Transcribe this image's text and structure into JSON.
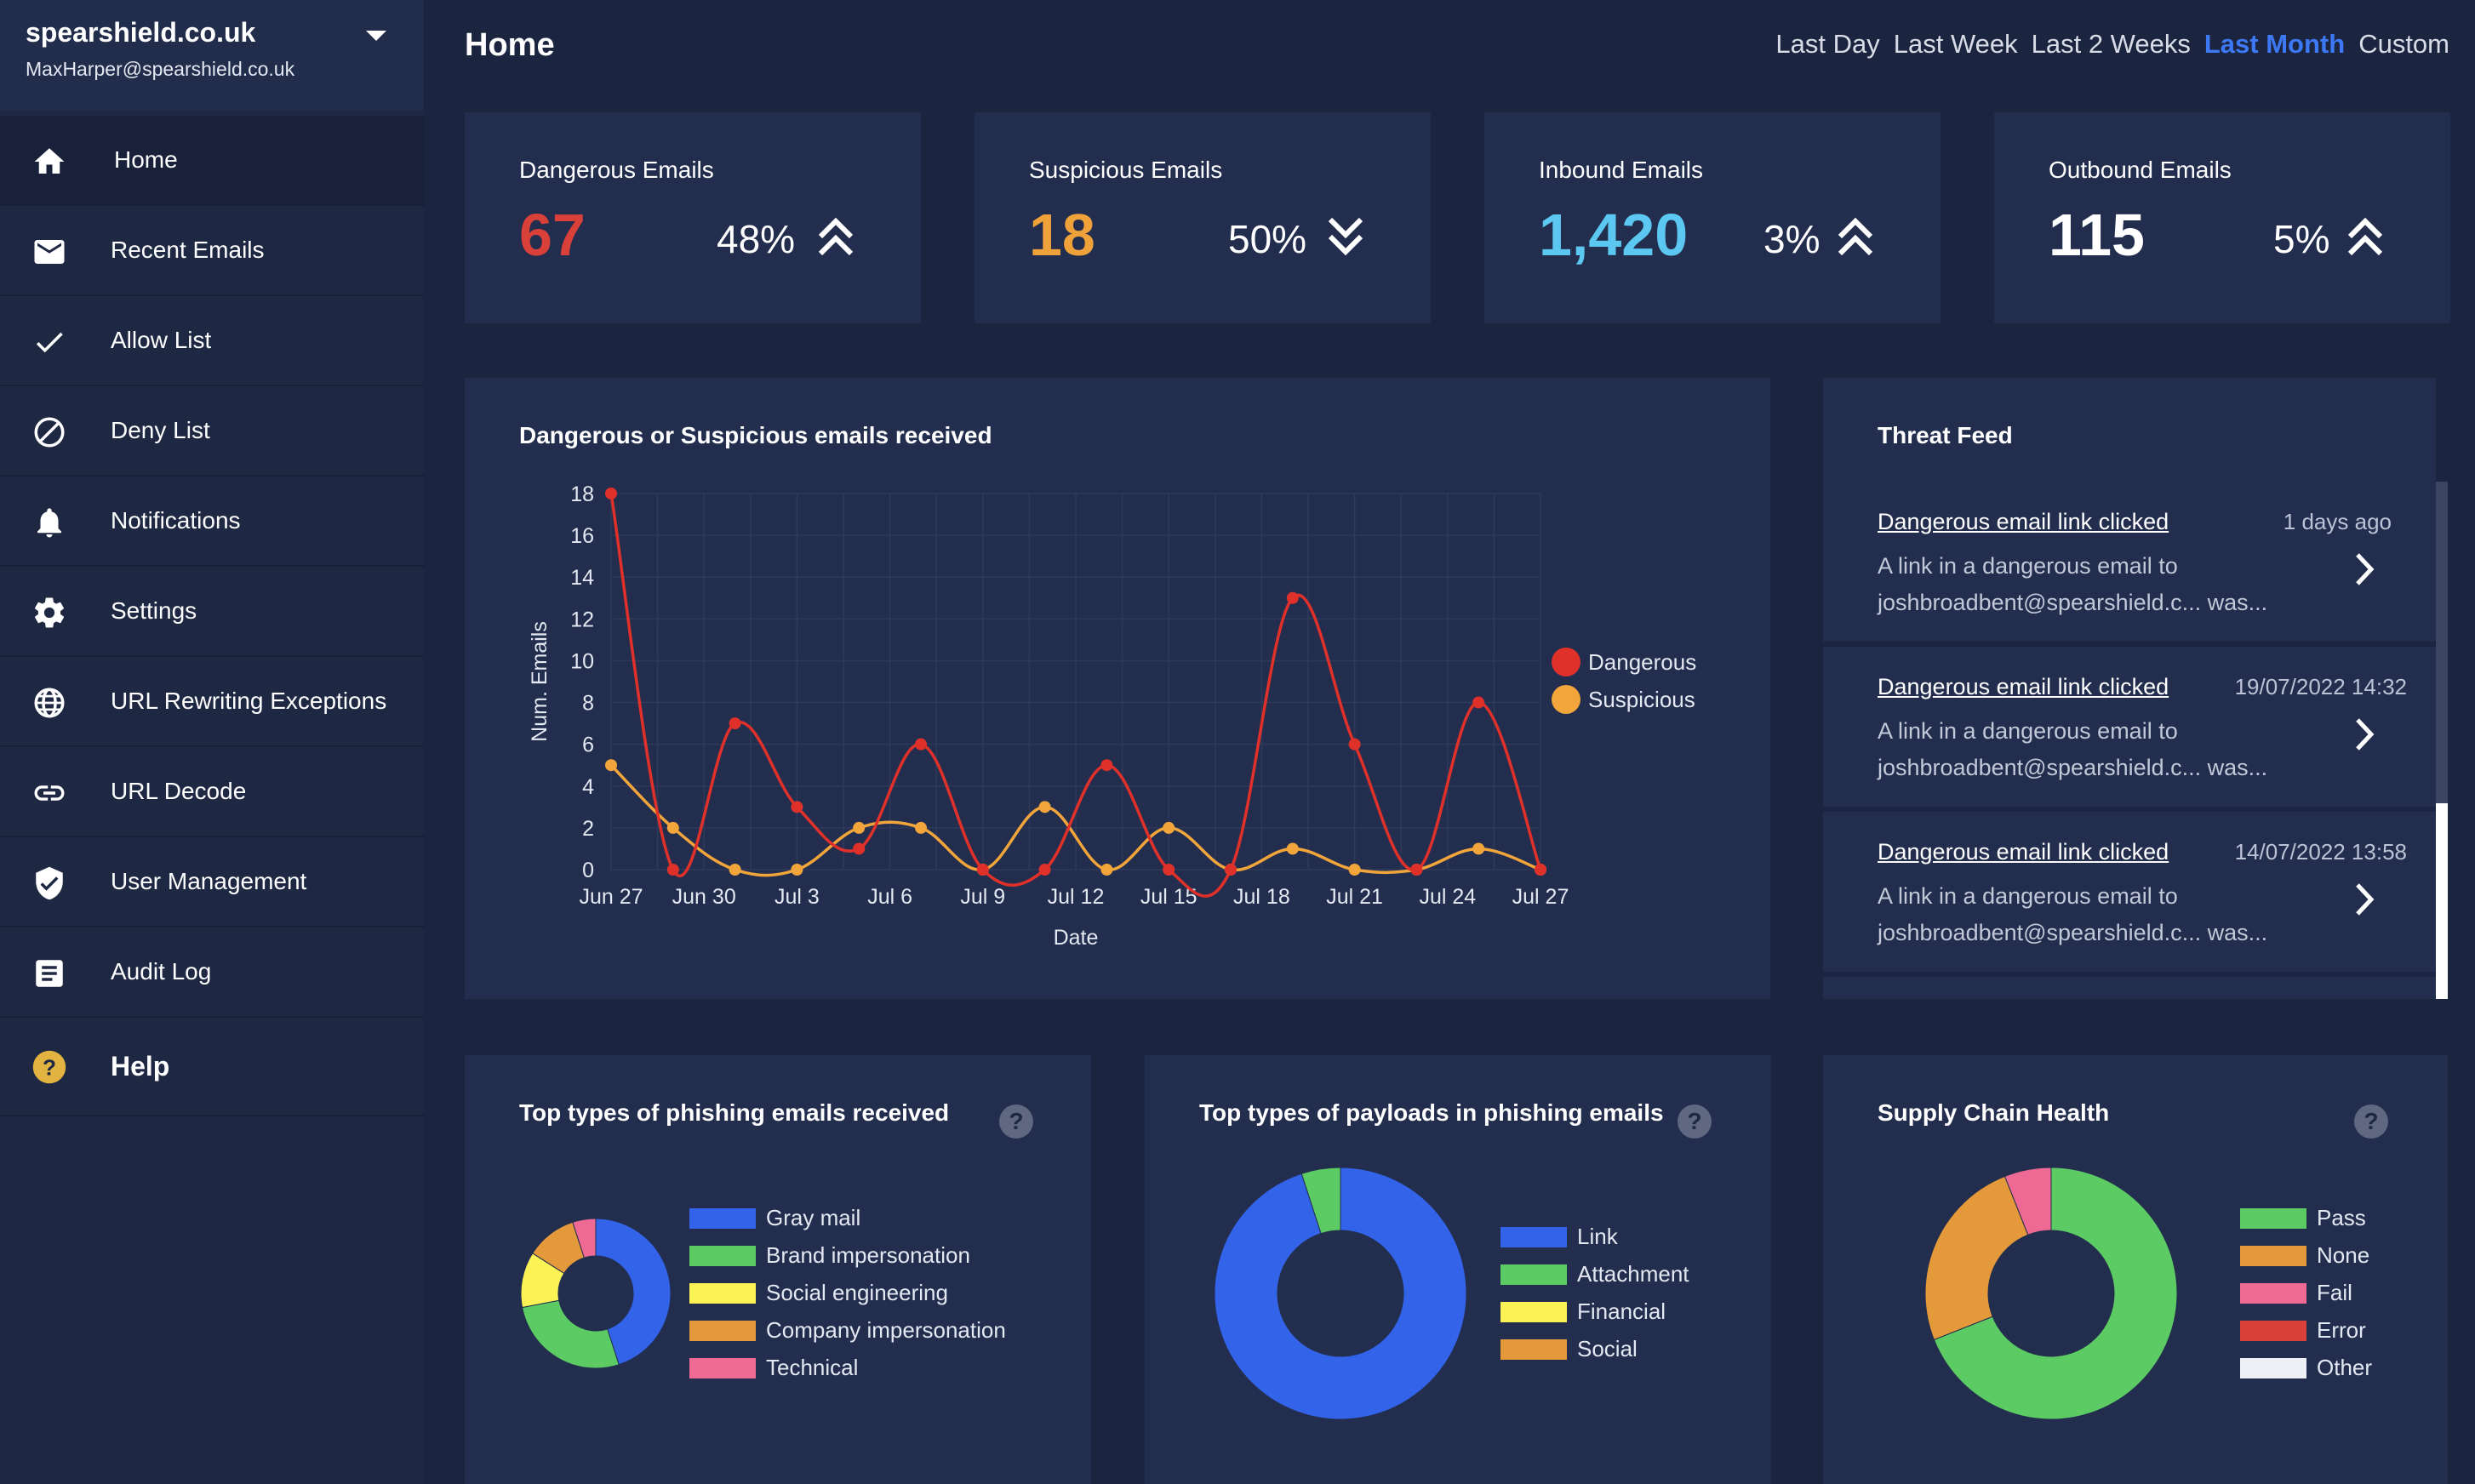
{
  "org": {
    "name": "spearshield.co.uk",
    "email": "MaxHarper@spearshield.co.uk"
  },
  "nav": [
    {
      "label": "Home",
      "icon": "home-icon"
    },
    {
      "label": "Recent Emails",
      "icon": "mail-icon"
    },
    {
      "label": "Allow List",
      "icon": "check-icon"
    },
    {
      "label": "Deny List",
      "icon": "block-icon"
    },
    {
      "label": "Notifications",
      "icon": "bell-icon"
    },
    {
      "label": "Settings",
      "icon": "gear-icon"
    },
    {
      "label": "URL Rewriting Exceptions",
      "icon": "globe-icon"
    },
    {
      "label": "URL Decode",
      "icon": "link-icon"
    },
    {
      "label": "User Management",
      "icon": "shield-check-icon"
    },
    {
      "label": "Audit Log",
      "icon": "document-icon"
    },
    {
      "label": "Help",
      "icon": "help-icon"
    }
  ],
  "page_title": "Home",
  "ranges": [
    "Last Day",
    "Last Week",
    "Last 2 Weeks",
    "Last Month",
    "Custom"
  ],
  "selected_range": "Last Month",
  "stats": [
    {
      "label": "Dangerous Emails",
      "value": "67",
      "pct": "48%",
      "trend": "up",
      "color": "#d9403a"
    },
    {
      "label": "Suspicious Emails",
      "value": "18",
      "pct": "50%",
      "trend": "down",
      "color": "#f0a23a"
    },
    {
      "label": "Inbound Emails",
      "value": "1,420",
      "pct": "3%",
      "trend": "up",
      "color": "#5cc8f2"
    },
    {
      "label": "Outbound Emails",
      "value": "115",
      "pct": "5%",
      "trend": "up",
      "color": "#ffffff"
    }
  ],
  "threat_feed": {
    "title": "Threat Feed",
    "items": [
      {
        "title": "Dangerous email link clicked",
        "time": "1 days ago",
        "line1": "A link in a dangerous email to",
        "line2": "joshbroadbent@spearshield.c... was..."
      },
      {
        "title": "Dangerous email link clicked",
        "time": "19/07/2022 14:32",
        "line1": "A link in a dangerous email to",
        "line2": "joshbroadbent@spearshield.c... was..."
      },
      {
        "title": "Dangerous email link clicked",
        "time": "14/07/2022 13:58",
        "line1": "A link in a dangerous email to",
        "line2": "joshbroadbent@spearshield.c... was..."
      }
    ]
  },
  "chart_data": [
    {
      "type": "line",
      "title": "Dangerous or Suspicious emails received",
      "xlabel": "Date",
      "ylabel": "Num. Emails",
      "ylim": [
        0,
        18
      ],
      "yticks": [
        0,
        2,
        4,
        6,
        8,
        10,
        12,
        14,
        16,
        18
      ],
      "xticks": [
        "Jun 27",
        "Jun 30",
        "Jul 3",
        "Jul 6",
        "Jul 9",
        "Jul 12",
        "Jul 15",
        "Jul 18",
        "Jul 21",
        "Jul 24",
        "Jul 27"
      ],
      "x": [
        0,
        2,
        4,
        6,
        8,
        10,
        12,
        14,
        16,
        18,
        20,
        22,
        24,
        26,
        28,
        30
      ],
      "series": [
        {
          "name": "Dangerous",
          "color": "#e0302a",
          "values": [
            18,
            0,
            7,
            3,
            1,
            6,
            0,
            0,
            5,
            0,
            0,
            13,
            6,
            0,
            8,
            0
          ]
        },
        {
          "name": "Suspicious",
          "color": "#f2a53a",
          "values": [
            5,
            2,
            0,
            0,
            2,
            2,
            0,
            3,
            0,
            2,
            0,
            1,
            0,
            0,
            1,
            0
          ]
        }
      ]
    },
    {
      "type": "pie",
      "title": "Top types of phishing emails received",
      "labels": [
        "Gray mail",
        "Brand impersonation",
        "Social engineering",
        "Company impersonation",
        "Technical"
      ],
      "values": [
        45,
        27,
        12,
        11,
        5
      ],
      "colors": [
        "#3263e8",
        "#5ccb64",
        "#fbf255",
        "#e49a3a",
        "#ee6a95"
      ]
    },
    {
      "type": "pie",
      "title": "Top types of payloads in phishing emails",
      "labels": [
        "Link",
        "Attachment",
        "Financial",
        "Social"
      ],
      "values": [
        95,
        5,
        0,
        0
      ],
      "colors": [
        "#3263e8",
        "#5ccb64",
        "#fbf255",
        "#e49a3a"
      ]
    },
    {
      "type": "pie",
      "title": "Supply Chain Health",
      "labels": [
        "Pass",
        "None",
        "Fail",
        "Error",
        "Other"
      ],
      "values": [
        69,
        25,
        6,
        0,
        0
      ],
      "colors": [
        "#5ccb64",
        "#e49a3a",
        "#ee6a95",
        "#d9403a",
        "#eef0f6"
      ]
    }
  ]
}
